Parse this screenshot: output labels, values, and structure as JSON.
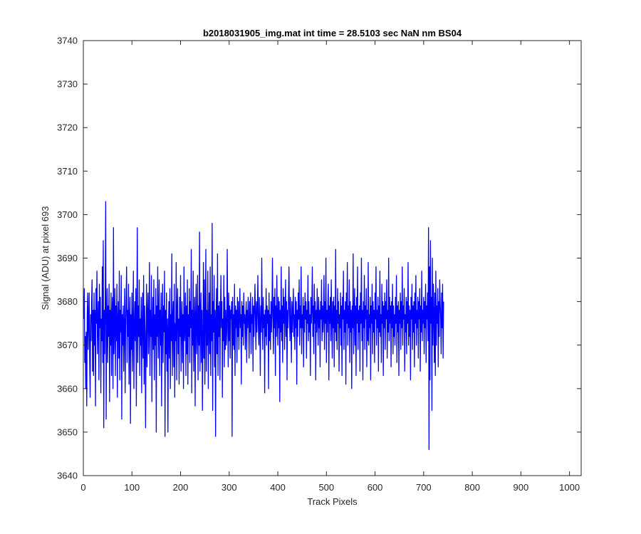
{
  "chart_data": {
    "type": "line",
    "title": "b2018031905_img.mat int time = 28.5103 sec  NaN nm BS04",
    "xlabel": "Track Pixels",
    "ylabel": "Signal (ADU) at pixel 693",
    "xlim": [
      0,
      1024
    ],
    "ylim": [
      3640,
      3740
    ],
    "xticks": [
      0,
      100,
      200,
      300,
      400,
      500,
      600,
      700,
      800,
      900,
      1000
    ],
    "yticks": [
      3640,
      3650,
      3660,
      3670,
      3680,
      3690,
      3700,
      3710,
      3720,
      3730,
      3740
    ],
    "grid": false,
    "line_color": "#0000ff",
    "series": [
      {
        "x_start": 1,
        "x_step": 1,
        "values": [
          3676,
          3683,
          3666,
          3672,
          3660,
          3673,
          3656,
          3677,
          3682,
          3669,
          3676,
          3682,
          3667,
          3658,
          3677,
          3671,
          3680,
          3685,
          3664,
          3678,
          3663,
          3682,
          3670,
          3678,
          3656,
          3683,
          3675,
          3687,
          3668,
          3676,
          3680,
          3662,
          3684,
          3674,
          3681,
          3659,
          3676,
          3671,
          3688,
          3666,
          3694,
          3651,
          3678,
          3668,
          3681,
          3703,
          3653,
          3675,
          3683,
          3666,
          3679,
          3672,
          3684,
          3657,
          3678,
          3670,
          3682,
          3663,
          3677,
          3681,
          3660,
          3697,
          3668,
          3675,
          3683,
          3663,
          3679,
          3671,
          3684,
          3658,
          3676,
          3680,
          3667,
          3687,
          3662,
          3678,
          3673,
          3686,
          3653,
          3677,
          3670,
          3679,
          3664,
          3675,
          3683,
          3659,
          3674,
          3681,
          3688,
          3666,
          3678,
          3672,
          3684,
          3661,
          3676,
          3681,
          3652,
          3677,
          3669,
          3682,
          3664,
          3675,
          3687,
          3660,
          3674,
          3680,
          3671,
          3683,
          3656,
          3677,
          3697,
          3666,
          3679,
          3672,
          3685,
          3663,
          3676,
          3670,
          3681,
          3659,
          3675,
          3682,
          3667,
          3686,
          3661,
          3679,
          3673,
          3651,
          3671,
          3684,
          3665,
          3677,
          3682,
          3668,
          3675,
          3689,
          3663,
          3678,
          3672,
          3686,
          3657,
          3674,
          3681,
          3669,
          3685,
          3662,
          3677,
          3670,
          3683,
          3650,
          3679,
          3672,
          3688,
          3667,
          3676,
          3685,
          3663,
          3678,
          3670,
          3682,
          3656,
          3675,
          3684,
          3666,
          3679,
          3673,
          3687,
          3649,
          3678,
          3668,
          3682,
          3664,
          3676,
          3650,
          3674,
          3680,
          3667,
          3683,
          3660,
          3677,
          3671,
          3691,
          3663,
          3676,
          3680,
          3665,
          3684,
          3658,
          3675,
          3671,
          3689,
          3662,
          3678,
          3683,
          3668,
          3676,
          3661,
          3681,
          3672,
          3686,
          3664,
          3675,
          3680,
          3666,
          3677,
          3660,
          3688,
          3671,
          3674,
          3682,
          3663,
          3679,
          3668,
          3685,
          3661,
          3677,
          3672,
          3683,
          3666,
          3680,
          3674,
          3692,
          3659,
          3678,
          3670,
          3687,
          3664,
          3675,
          3681,
          3656,
          3677,
          3684,
          3668,
          3673,
          3686,
          3662,
          3679,
          3670,
          3696,
          3664,
          3676,
          3682,
          3666,
          3678,
          3655,
          3671,
          3689,
          3667,
          3685,
          3661,
          3677,
          3692,
          3664,
          3678,
          3670,
          3687,
          3660,
          3675,
          3682,
          3668,
          3688,
          3663,
          3677,
          3671,
          3698,
          3655,
          3680,
          3673,
          3686,
          3665,
          3678,
          3649,
          3676,
          3683,
          3668,
          3691,
          3663,
          3679,
          3672,
          3680,
          3662,
          3677,
          3686,
          3674,
          3680,
          3658,
          3676,
          3671,
          3686,
          3665,
          3681,
          3669,
          3678,
          3670,
          3673,
          3692,
          3676,
          3665,
          3682,
          3671,
          3679,
          3667,
          3678,
          3676,
          3680,
          3649,
          3681,
          3670,
          3677,
          3669,
          3684,
          3663,
          3679,
          3674,
          3678,
          3666,
          3681,
          3672,
          3680,
          3669,
          3676,
          3683,
          3674,
          3677,
          3661,
          3680,
          3672,
          3679,
          3670,
          3682,
          3675,
          3677,
          3669,
          3676,
          3680,
          3666,
          3678,
          3674,
          3681,
          3676,
          3667,
          3680,
          3673,
          3682,
          3668,
          3677,
          3675,
          3681,
          3664,
          3679,
          3672,
          3678,
          3684,
          3676,
          3669,
          3680,
          3673,
          3678,
          3686,
          3674,
          3670,
          3681,
          3676,
          3663,
          3679,
          3673,
          3690,
          3676,
          3669,
          3681,
          3674,
          3677,
          3659,
          3678,
          3672,
          3683,
          3670,
          3679,
          3675,
          3678,
          3660,
          3682,
          3671,
          3677,
          3669,
          3680,
          3673,
          3678,
          3690,
          3676,
          3668,
          3681,
          3674,
          3683,
          3663,
          3679,
          3672,
          3686,
          3677,
          3670,
          3681,
          3674,
          3680,
          3657,
          3678,
          3673,
          3688,
          3671,
          3679,
          3666,
          3683,
          3675,
          3681,
          3669,
          3677,
          3685,
          3672,
          3680,
          3662,
          3678,
          3674,
          3681,
          3688,
          3676,
          3671,
          3681,
          3675,
          3666,
          3680,
          3673,
          3678,
          3683,
          3672,
          3677,
          3669,
          3681,
          3674,
          3680,
          3661,
          3678,
          3672,
          3682,
          3676,
          3685,
          3670,
          3679,
          3674,
          3688,
          3668,
          3677,
          3674,
          3681,
          3665,
          3679,
          3673,
          3682,
          3676,
          3680,
          3667,
          3678,
          3675,
          3686,
          3671,
          3680,
          3673,
          3677,
          3663,
          3681,
          3675,
          3679,
          3688,
          3672,
          3679,
          3668,
          3684,
          3675,
          3680,
          3662,
          3678,
          3673,
          3683,
          3677,
          3670,
          3681,
          3674,
          3678,
          3665,
          3680,
          3676,
          3685,
          3671,
          3679,
          3673,
          3677,
          3686,
          3669,
          3680,
          3675,
          3690,
          3666,
          3678,
          3673,
          3680,
          3684,
          3662,
          3679,
          3675,
          3681,
          3671,
          3685,
          3676,
          3667,
          3680,
          3674,
          3681,
          3665,
          3679,
          3673,
          3692,
          3671,
          3678,
          3669,
          3683,
          3675,
          3680,
          3664,
          3677,
          3674,
          3682,
          3670,
          3679,
          3663,
          3681,
          3676,
          3687,
          3669,
          3678,
          3673,
          3680,
          3661,
          3682,
          3675,
          3689,
          3670,
          3679,
          3674,
          3685,
          3666,
          3680,
          3673,
          3678,
          3660,
          3679,
          3674,
          3691,
          3668,
          3677,
          3683,
          3670,
          3679,
          3663,
          3681,
          3675,
          3688,
          3669,
          3678,
          3673,
          3679,
          3664,
          3682,
          3675,
          3690,
          3671,
          3678,
          3662,
          3680,
          3674,
          3686,
          3669,
          3679,
          3676,
          3683,
          3665,
          3678,
          3671,
          3689,
          3670,
          3677,
          3674,
          3681,
          3662,
          3679,
          3675,
          3684,
          3668,
          3680,
          3673,
          3678,
          3666,
          3682,
          3676,
          3688,
          3670,
          3678,
          3674,
          3681,
          3664,
          3679,
          3673,
          3687,
          3672,
          3677,
          3666,
          3684,
          3675,
          3680,
          3663,
          3679,
          3674,
          3682,
          3669,
          3680,
          3676,
          3685,
          3667,
          3678,
          3673,
          3690,
          3671,
          3681,
          3675,
          3679,
          3665,
          3680,
          3674,
          3684,
          3668,
          3679,
          3672,
          3677,
          3670,
          3681,
          3675,
          3686,
          3666,
          3679,
          3673,
          3680,
          3663,
          3678,
          3675,
          3682,
          3669,
          3680,
          3674,
          3688,
          3670,
          3679,
          3676,
          3683,
          3664,
          3677,
          3673,
          3681,
          3668,
          3680,
          3675,
          3689,
          3670,
          3679,
          3672,
          3678,
          3662,
          3681,
          3676,
          3684,
          3669,
          3679,
          3673,
          3680,
          3665,
          3682,
          3675,
          3686,
          3670,
          3678,
          3674,
          3681,
          3667,
          3680,
          3676,
          3683,
          3664,
          3679,
          3673,
          3687,
          3671,
          3678,
          3675,
          3681,
          3668,
          3680,
          3674,
          3684,
          3666,
          3679,
          3676,
          3682,
          3671,
          3697,
          3646,
          3688,
          3662,
          3694,
          3675,
          3681,
          3655,
          3690,
          3670,
          3684,
          3677,
          3666,
          3682,
          3663,
          3687,
          3670,
          3679,
          3675,
          3683,
          3665,
          3680,
          3672,
          3685,
          3680,
          3676,
          3668,
          3682,
          3674,
          3684,
          3667,
          3680
        ]
      }
    ],
    "annotations": []
  },
  "figure": {
    "background": "#ffffff",
    "axes_color": "#262626"
  }
}
